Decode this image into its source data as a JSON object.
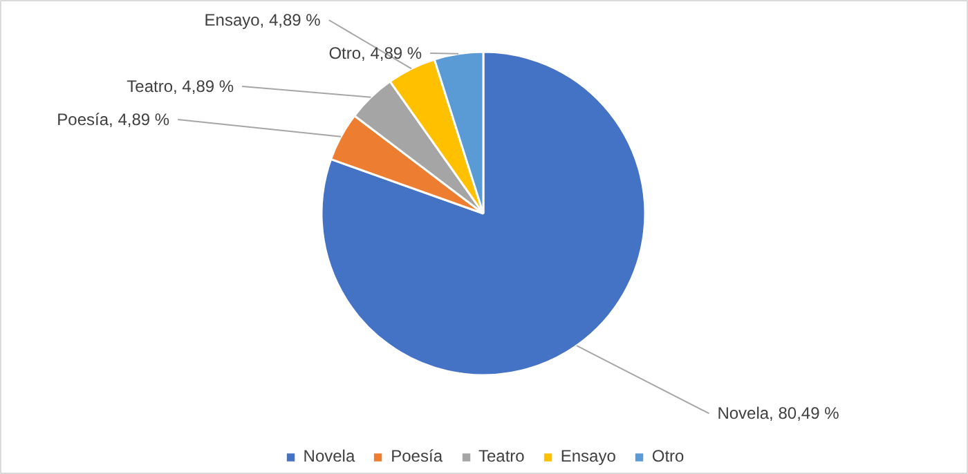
{
  "chart_data": {
    "type": "pie",
    "categories": [
      "Novela",
      "Poesía",
      "Teatro",
      "Ensayo",
      "Otro"
    ],
    "values": [
      80.49,
      4.89,
      4.89,
      4.89,
      4.89
    ],
    "value_labels": [
      "Novela, 80,49 %",
      "Poesía, 4,89 %",
      "Teatro, 4,89 %",
      "Ensayo, 4,89 %",
      "Otro, 4,89 %"
    ],
    "colors": [
      "#4472c4",
      "#ed7d31",
      "#a5a5a5",
      "#ffc000",
      "#5b9bd5"
    ],
    "legend": "bottom"
  }
}
